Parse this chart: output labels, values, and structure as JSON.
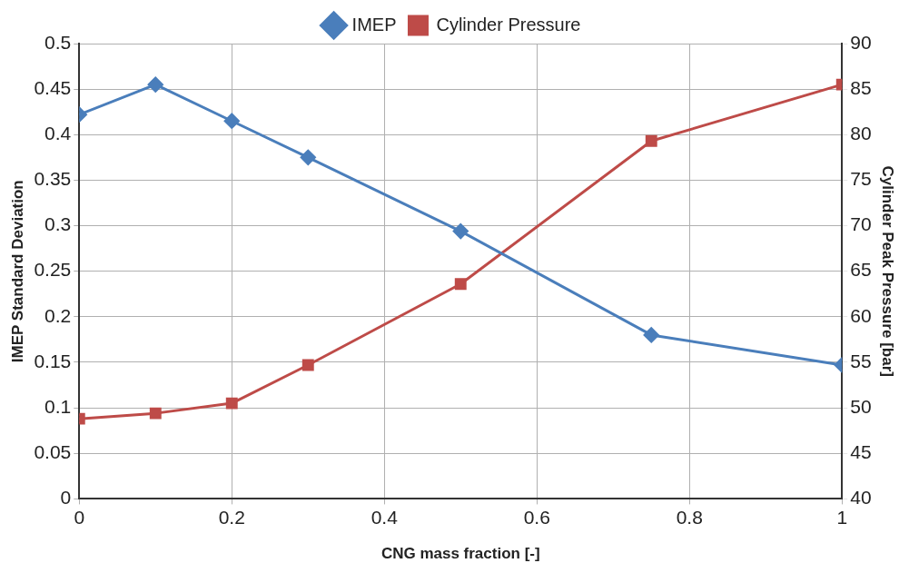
{
  "chart_data": {
    "type": "line",
    "xlabel": "CNG mass fraction [-]",
    "ylabel": "IMEP Standard Deviation",
    "y2label": "Cylinder Peak Pressure [bar]",
    "x": [
      0,
      0.1,
      0.2,
      0.3,
      0.5,
      0.75,
      1
    ],
    "series": [
      {
        "name": "IMEP",
        "color": "#4a7ebb",
        "marker": "diamond",
        "values": [
          0.422,
          0.455,
          0.415,
          0.375,
          0.294,
          0.18,
          0.147
        ]
      },
      {
        "name": "Cylinder Pressure",
        "color": "#be4b48",
        "marker": "square",
        "axis": "y2",
        "values": [
          48.8,
          49.4,
          50.5,
          54.7,
          63.6,
          79.3,
          85.5
        ]
      }
    ],
    "xlim": [
      0,
      1
    ],
    "xticks": [
      0,
      0.2,
      0.4,
      0.6,
      0.8,
      1
    ],
    "ylim": [
      0,
      0.5
    ],
    "yticks": [
      0,
      0.05,
      0.1,
      0.15,
      0.2,
      0.25,
      0.3,
      0.35,
      0.4,
      0.45,
      0.5
    ],
    "y2lim": [
      40,
      90
    ],
    "y2ticks": [
      40,
      45,
      50,
      55,
      60,
      65,
      70,
      75,
      80,
      85,
      90
    ],
    "grid": true,
    "legend": "top",
    "line_style": "solid"
  }
}
